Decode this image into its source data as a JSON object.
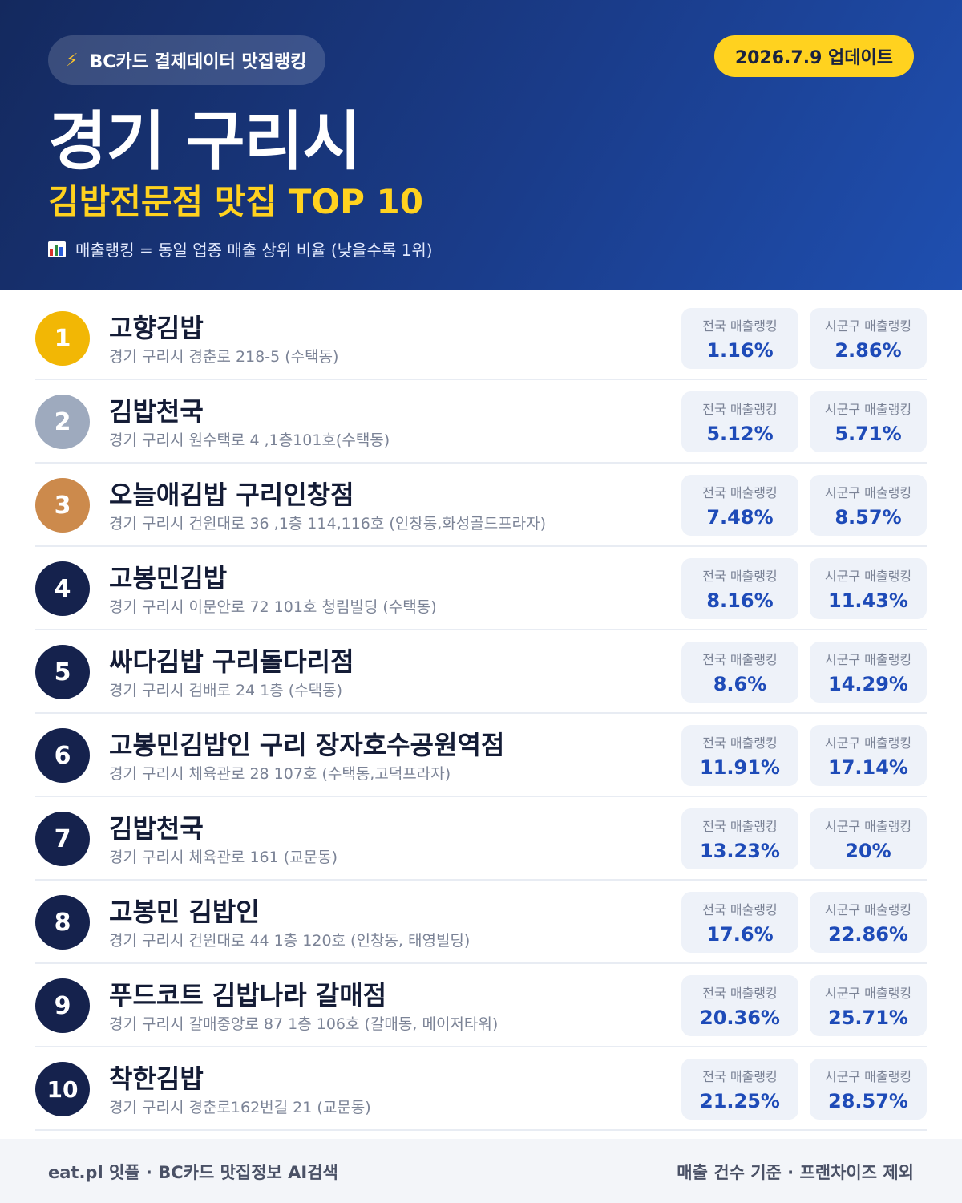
{
  "header": {
    "source_label": "BC카드 결제데이터 맛집랭킹",
    "update_label": "2026.7.9 업데이트",
    "city": "경기 구리시",
    "subtitle": "김밥전문점 맛집 TOP 10",
    "legend": "매출랭킹 = 동일 업종 매출 상위 비율 (낮을수록 1위)"
  },
  "stat_labels": {
    "national": "전국 매출랭킹",
    "local": "시군구 매출랭킹"
  },
  "rows": [
    {
      "rank": "1",
      "name": "고향김밥",
      "address": "경기 구리시 경춘로 218-5 (수택동)",
      "national": "1.16%",
      "local": "2.86%"
    },
    {
      "rank": "2",
      "name": "김밥천국",
      "address": "경기 구리시 원수택로 4 ,1층101호(수택동)",
      "national": "5.12%",
      "local": "5.71%"
    },
    {
      "rank": "3",
      "name": "오늘애김밥 구리인창점",
      "address": "경기 구리시 건원대로 36 ,1층 114,116호 (인창동,화성골드프라자)",
      "national": "7.48%",
      "local": "8.57%"
    },
    {
      "rank": "4",
      "name": "고봉민김밥",
      "address": "경기 구리시 이문안로 72 101호 청림빌딩 (수택동)",
      "national": "8.16%",
      "local": "11.43%"
    },
    {
      "rank": "5",
      "name": "싸다김밥 구리돌다리점",
      "address": "경기 구리시 검배로 24 1층 (수택동)",
      "national": "8.6%",
      "local": "14.29%"
    },
    {
      "rank": "6",
      "name": "고봉민김밥인 구리 장자호수공원역점",
      "address": "경기 구리시 체육관로 28 107호 (수택동,고덕프라자)",
      "national": "11.91%",
      "local": "17.14%"
    },
    {
      "rank": "7",
      "name": "김밥천국",
      "address": "경기 구리시 체육관로 161 (교문동)",
      "national": "13.23%",
      "local": "20%"
    },
    {
      "rank": "8",
      "name": "고봉민 김밥인",
      "address": "경기 구리시 건원대로 44 1층 120호 (인창동, 태영빌딩)",
      "national": "17.6%",
      "local": "22.86%"
    },
    {
      "rank": "9",
      "name": "푸드코트 김밥나라 갈매점",
      "address": "경기 구리시 갈매중앙로 87 1층 106호 (갈매동, 메이저타워)",
      "national": "20.36%",
      "local": "25.71%"
    },
    {
      "rank": "10",
      "name": "착한김밥",
      "address": "경기 구리시 경춘로162번길 21 (교문동)",
      "national": "21.25%",
      "local": "28.57%"
    }
  ],
  "footer": {
    "left": "eat.pl 잇플 · BC카드 맛집정보 AI검색",
    "right": "매출 건수 기준 · 프랜차이즈 제외"
  },
  "icons": {
    "source": "lightning-icon",
    "legend": "bar-chart-icon"
  },
  "colors": {
    "header_start": "#14295e",
    "header_end": "#1f4fb0",
    "accent_yellow": "#ffd21f",
    "rank_gold": "#f2b705",
    "rank_silver": "#9eaabe",
    "rank_bronze": "#cc8a4c",
    "rank_default": "#15224d",
    "stat_value": "#1e4bb8"
  }
}
